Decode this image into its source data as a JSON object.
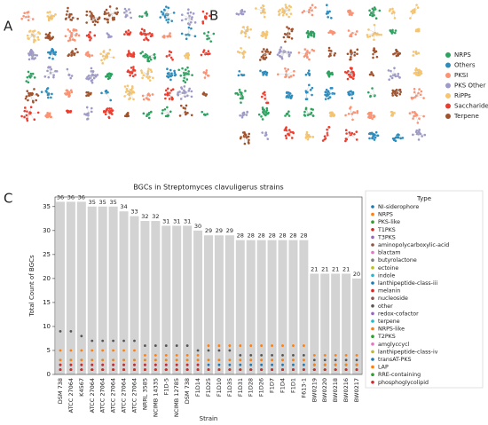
{
  "panel_labels": [
    "A",
    "B",
    "C"
  ],
  "network_legend": [
    {
      "name": "NRPS",
      "color": "#2ca25f"
    },
    {
      "name": "Others",
      "color": "#2b8cbe"
    },
    {
      "name": "PKSI",
      "color": "#fc9272"
    },
    {
      "name": "PKS Other",
      "color": "#9e9ac8"
    },
    {
      "name": "RiPPs",
      "color": "#f6c56f"
    },
    {
      "name": "Saccharides",
      "color": "#ef3b2c"
    },
    {
      "name": "Terpene",
      "color": "#a0522d"
    }
  ],
  "chart_data": {
    "type": "bar",
    "title": "BGCs in Streptomyces clavuligerus strains",
    "y_label": "Total Count of BGCs",
    "x_label": "Strain",
    "categories": [
      "DSM 738",
      "ATCC 27064",
      "K4567",
      "ATCC 27064",
      "ATCC 27064",
      "ATCC 27064",
      "ATCC 27064",
      "ATCC 27064",
      "NRRL 3585",
      "NCIMB 14335",
      "F1D-5",
      "NCIMB 12785",
      "DSM 738",
      "F1D14",
      "F1D25",
      "F1D10",
      "F1D35",
      "F1D31",
      "F1D28",
      "F1D26",
      "F1D7",
      "F1D4",
      "F1D1",
      "F613-1",
      "BW0219",
      "BW0220",
      "BW0218",
      "BW0216",
      "BW0217"
    ],
    "values": [
      36,
      36,
      36,
      35,
      35,
      35,
      34,
      33,
      32,
      32,
      31,
      31,
      31,
      30,
      29,
      29,
      29,
      28,
      28,
      28,
      28,
      28,
      28,
      28,
      21,
      21,
      21,
      21,
      20
    ],
    "color": "#d3d3d3",
    "ylim": [
      0,
      37
    ],
    "yticks": [
      0,
      5,
      10,
      15,
      20,
      25,
      30,
      35
    ],
    "legend_title": "Type",
    "series": [
      {
        "name": "NI-siderophore",
        "color": "#1f77b4",
        "values": [
          2,
          2,
          2,
          2,
          2,
          2,
          2,
          2,
          2,
          2,
          2,
          2,
          2,
          2,
          2,
          2,
          2,
          2,
          2,
          2,
          2,
          2,
          2,
          2,
          2,
          2,
          2,
          2,
          2
        ]
      },
      {
        "name": "NRPS",
        "color": "#ff7f0e",
        "values": [
          5,
          5,
          5,
          5,
          5,
          5,
          5,
          5,
          4,
          4,
          4,
          4,
          4,
          4,
          6,
          6,
          6,
          6,
          6,
          6,
          6,
          6,
          6,
          6,
          4,
          4,
          4,
          4,
          4
        ]
      },
      {
        "name": "PKS-like",
        "color": "#2ca02c",
        "values": [
          1,
          1,
          1,
          1,
          1,
          1,
          1,
          1,
          1,
          1,
          1,
          1,
          1,
          1,
          1,
          1,
          1,
          1,
          1,
          1,
          1,
          1,
          1,
          1,
          1,
          1,
          1,
          1,
          1
        ]
      },
      {
        "name": "T1PKS",
        "color": "#d62728",
        "values": [
          2,
          2,
          2,
          2,
          2,
          2,
          2,
          2,
          2,
          2,
          2,
          2,
          2,
          2,
          1,
          1,
          1,
          1,
          1,
          1,
          1,
          1,
          1,
          1,
          1,
          1,
          1,
          1,
          1
        ]
      },
      {
        "name": "T3PKS",
        "color": "#9467bd",
        "values": [
          1,
          1,
          1,
          1,
          1,
          1,
          1,
          1,
          1,
          1,
          1,
          1,
          1,
          1,
          1,
          1,
          1,
          1,
          1,
          1,
          1,
          1,
          1,
          1,
          1,
          1,
          1,
          1,
          1
        ]
      },
      {
        "name": "aminopolycarboxylic-acid",
        "color": "#8c564b",
        "values": [
          1,
          1,
          1,
          1,
          1,
          1,
          1,
          1,
          1,
          1,
          1,
          1,
          1,
          1,
          1,
          1,
          1,
          1,
          1,
          1,
          1,
          1,
          1,
          1,
          1,
          1,
          1,
          1,
          1
        ]
      },
      {
        "name": "blactam",
        "color": "#e377c2",
        "values": [
          1,
          1,
          1,
          1,
          1,
          1,
          1,
          1,
          1,
          1,
          1,
          1,
          1,
          1,
          1,
          1,
          1,
          1,
          1,
          1,
          1,
          1,
          1,
          1,
          1,
          1,
          1,
          1,
          1
        ]
      },
      {
        "name": "butyrolactone",
        "color": "#7f7f7f",
        "values": [
          1,
          1,
          1,
          1,
          1,
          1,
          1,
          1,
          1,
          1,
          1,
          1,
          1,
          1,
          1,
          1,
          1,
          1,
          1,
          1,
          1,
          1,
          1,
          1,
          1,
          1,
          1,
          1,
          1
        ]
      },
      {
        "name": "ectoine",
        "color": "#bcbd22",
        "values": [
          1,
          1,
          1,
          1,
          1,
          1,
          1,
          1,
          1,
          1,
          1,
          1,
          1,
          1,
          1,
          1,
          1,
          1,
          1,
          1,
          1,
          1,
          1,
          1,
          1,
          1,
          1,
          1,
          1
        ]
      },
      {
        "name": "indole",
        "color": "#17becf",
        "values": [
          1,
          1,
          1,
          1,
          1,
          1,
          1,
          1,
          1,
          1,
          1,
          1,
          1,
          1,
          1,
          1,
          1,
          1,
          1,
          1,
          1,
          1,
          1,
          1,
          1,
          1,
          1,
          1,
          1
        ]
      },
      {
        "name": "lanthipeptide-class-iii",
        "color": "#1f77b4",
        "values": [
          1,
          1,
          1,
          1,
          1,
          1,
          1,
          1,
          1,
          1,
          1,
          1,
          1,
          1,
          1,
          1,
          1,
          1,
          1,
          1,
          1,
          1,
          1,
          1,
          1,
          1,
          1,
          1,
          1
        ]
      },
      {
        "name": "melanin",
        "color": "#d62728",
        "values": [
          1,
          1,
          1,
          1,
          1,
          1,
          1,
          1,
          1,
          1,
          1,
          1,
          1,
          1,
          1,
          1,
          1,
          1,
          1,
          1,
          1,
          1,
          1,
          1,
          1,
          1,
          1,
          1,
          1
        ]
      },
      {
        "name": "nucleoside",
        "color": "#8c564b",
        "values": [
          1,
          1,
          1,
          1,
          1,
          1,
          1,
          1,
          1,
          1,
          1,
          1,
          1,
          1,
          1,
          1,
          1,
          1,
          1,
          1,
          1,
          1,
          1,
          1,
          1,
          1,
          1,
          1,
          1
        ]
      },
      {
        "name": "other",
        "color": "#555555",
        "values": [
          9,
          9,
          8,
          7,
          7,
          7,
          7,
          7,
          6,
          6,
          6,
          6,
          6,
          5,
          5,
          5,
          5,
          4,
          4,
          4,
          4,
          4,
          4,
          4,
          3,
          3,
          3,
          3,
          3
        ]
      },
      {
        "name": "redox-cofactor",
        "color": "#9467bd",
        "values": [
          1,
          1,
          1,
          1,
          1,
          1,
          1,
          1,
          1,
          1,
          1,
          1,
          1,
          1,
          1,
          1,
          1,
          1,
          1,
          1,
          1,
          1,
          1,
          1,
          1,
          1,
          1,
          1,
          1
        ]
      },
      {
        "name": "terpene",
        "color": "#17becf",
        "values": [
          3,
          3,
          3,
          3,
          3,
          3,
          3,
          3,
          3,
          3,
          3,
          3,
          3,
          3,
          3,
          3,
          3,
          3,
          3,
          3,
          3,
          3,
          3,
          3,
          2,
          2,
          2,
          2,
          2
        ]
      },
      {
        "name": "NRPS-like",
        "color": "#ff7f0e",
        "values": [
          3,
          3,
          3,
          3,
          3,
          3,
          3,
          3,
          3,
          3,
          3,
          3,
          3,
          3,
          3,
          3,
          3,
          3,
          3,
          3,
          3,
          3,
          3,
          3,
          2,
          2,
          2,
          2,
          2
        ]
      },
      {
        "name": "T2PKS",
        "color": "#2ca02c",
        "values": [
          1,
          1,
          1,
          1,
          1,
          1,
          1,
          1,
          1,
          1,
          1,
          1,
          1,
          1,
          1,
          1,
          1,
          1,
          1,
          1,
          1,
          1,
          1,
          1,
          1,
          1,
          1,
          1,
          1
        ]
      },
      {
        "name": "amglyccycl",
        "color": "#e377c2",
        "values": [
          1,
          1,
          1,
          1,
          1,
          1,
          1,
          1,
          1,
          1,
          1,
          1,
          1,
          1,
          1,
          1,
          1,
          1,
          1,
          1,
          1,
          1,
          1,
          1,
          1,
          1,
          1,
          1,
          1
        ]
      },
      {
        "name": "lanthipeptide-class-iv",
        "color": "#bcbd22",
        "values": [
          1,
          1,
          1,
          1,
          1,
          1,
          1,
          1,
          1,
          1,
          1,
          1,
          1,
          1,
          1,
          1,
          1,
          1,
          1,
          1,
          1,
          1,
          1,
          1,
          1,
          1,
          1,
          1,
          1
        ]
      },
      {
        "name": "transAT-PKS",
        "color": "#1f77b4",
        "values": [
          1,
          1,
          1,
          1,
          1,
          1,
          1,
          1,
          1,
          1,
          1,
          1,
          1,
          1,
          1,
          1,
          1,
          1,
          1,
          1,
          1,
          1,
          1,
          1,
          1,
          1,
          1,
          1,
          1
        ]
      },
      {
        "name": "LAP",
        "color": "#ff7f0e",
        "values": [
          1,
          1,
          1,
          1,
          1,
          1,
          1,
          1,
          1,
          1,
          1,
          1,
          1,
          1,
          1,
          1,
          1,
          1,
          1,
          1,
          1,
          1,
          1,
          1,
          1,
          1,
          1,
          1,
          1
        ]
      },
      {
        "name": "RRE-containing",
        "color": "#2ca02c",
        "values": [
          1,
          1,
          1,
          1,
          1,
          1,
          1,
          1,
          1,
          1,
          1,
          1,
          1,
          1,
          1,
          1,
          1,
          1,
          1,
          1,
          1,
          1,
          1,
          1,
          1,
          1,
          1,
          1,
          1
        ]
      },
      {
        "name": "phosphoglycolipid",
        "color": "#d62728",
        "values": [
          1,
          1,
          1,
          1,
          1,
          1,
          1,
          1,
          1,
          1,
          1,
          1,
          1,
          1,
          1,
          1,
          1,
          1,
          1,
          1,
          1,
          1,
          1,
          1,
          1,
          1,
          1,
          1,
          1
        ]
      }
    ]
  }
}
